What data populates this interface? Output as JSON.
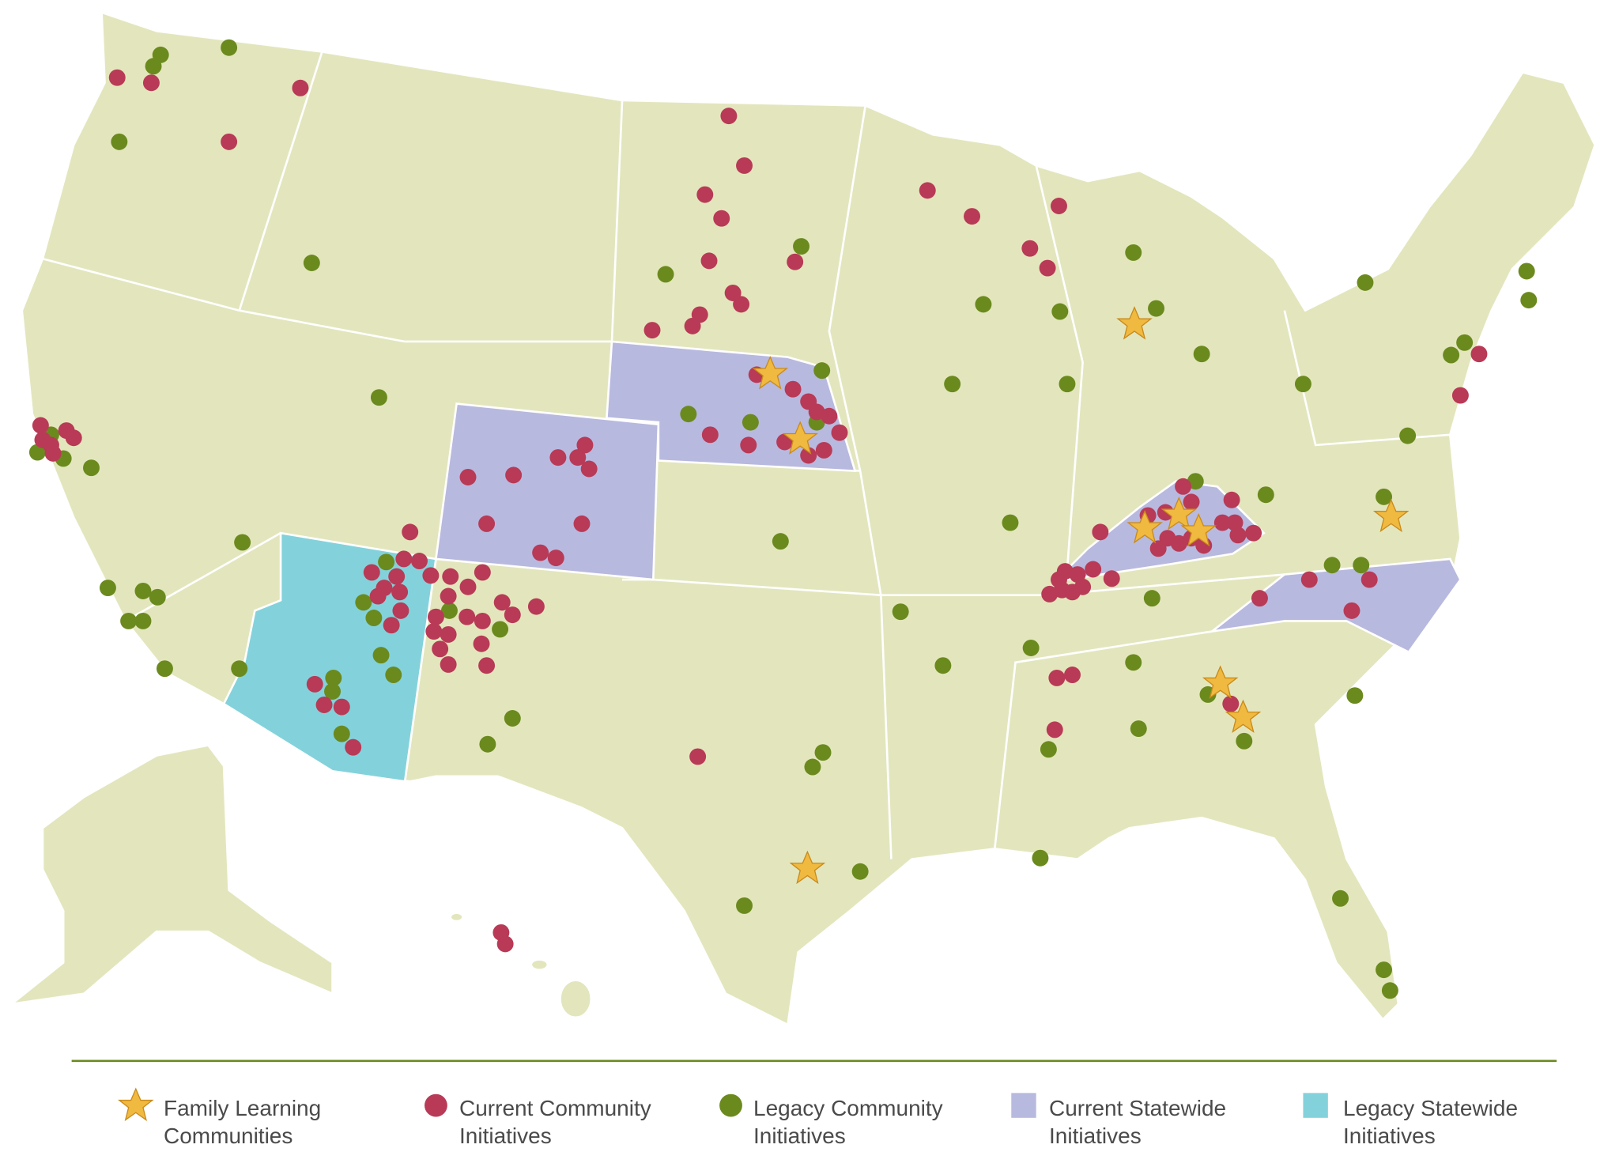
{
  "legend": {
    "items": [
      {
        "label": "Family Learning Communities"
      },
      {
        "label": "Current Community Initiatives"
      },
      {
        "label": "Legacy Community Initiatives"
      },
      {
        "label": "Current Statewide Initiatives"
      },
      {
        "label": "Legacy Statewide Initiatives"
      }
    ]
  }
}
